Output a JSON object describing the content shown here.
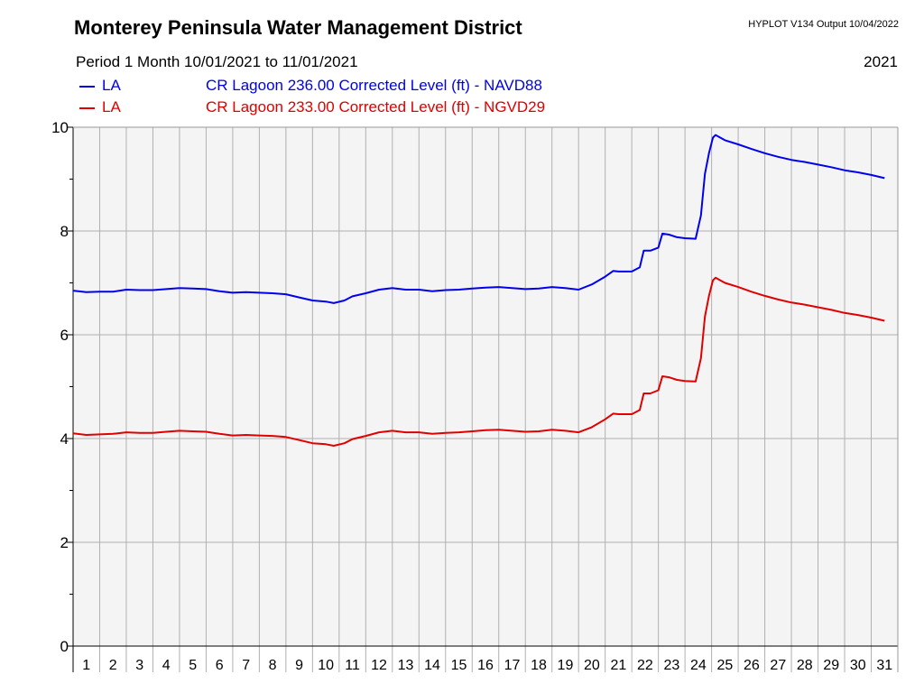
{
  "header": {
    "title": "Monterey Peninsula Water Management District",
    "meta": "HYPLOT V134  Output 10/04/2022",
    "period": "Period 1 Month  10/01/2021  to  11/01/2021",
    "year": "2021"
  },
  "chart_data": {
    "type": "line",
    "xlabel": "",
    "ylabel": "",
    "xlim": [
      1,
      32
    ],
    "ylim": [
      0,
      10
    ],
    "y_ticks": [
      0,
      2,
      4,
      6,
      8,
      10
    ],
    "y_minor_ticks": [
      1,
      3,
      5,
      7,
      9
    ],
    "x_tick_labels": [
      "1",
      "2",
      "3",
      "4",
      "5",
      "6",
      "7",
      "8",
      "9",
      "10",
      "11",
      "12",
      "13",
      "14",
      "15",
      "16",
      "17",
      "18",
      "19",
      "20",
      "21",
      "22",
      "23",
      "24",
      "25",
      "26",
      "27",
      "28",
      "29",
      "30",
      "31"
    ],
    "grid": true,
    "background": "#f4f4f4",
    "legend_position": "top-left",
    "series": [
      {
        "name": "CR Lagoon  236.00 Corrected Level (ft) - NAVD88",
        "site": "LA",
        "color": "#0000ee",
        "points": [
          [
            1,
            6.85
          ],
          [
            1.5,
            6.82
          ],
          [
            2,
            6.83
          ],
          [
            2.5,
            6.83
          ],
          [
            3,
            6.87
          ],
          [
            3.5,
            6.86
          ],
          [
            4,
            6.86
          ],
          [
            4.5,
            6.88
          ],
          [
            5,
            6.9
          ],
          [
            5.5,
            6.89
          ],
          [
            6,
            6.88
          ],
          [
            6.5,
            6.84
          ],
          [
            7,
            6.81
          ],
          [
            7.5,
            6.82
          ],
          [
            8,
            6.81
          ],
          [
            8.5,
            6.8
          ],
          [
            9,
            6.78
          ],
          [
            9.5,
            6.72
          ],
          [
            10,
            6.66
          ],
          [
            10.5,
            6.64
          ],
          [
            10.8,
            6.61
          ],
          [
            11.2,
            6.66
          ],
          [
            11.5,
            6.74
          ],
          [
            12,
            6.8
          ],
          [
            12.5,
            6.87
          ],
          [
            13,
            6.9
          ],
          [
            13.5,
            6.87
          ],
          [
            14,
            6.87
          ],
          [
            14.5,
            6.84
          ],
          [
            15,
            6.86
          ],
          [
            15.5,
            6.87
          ],
          [
            16,
            6.89
          ],
          [
            16.5,
            6.91
          ],
          [
            17,
            6.92
          ],
          [
            17.5,
            6.9
          ],
          [
            18,
            6.88
          ],
          [
            18.5,
            6.89
          ],
          [
            19,
            6.92
          ],
          [
            19.5,
            6.9
          ],
          [
            20,
            6.87
          ],
          [
            20.5,
            6.97
          ],
          [
            21,
            7.12
          ],
          [
            21.3,
            7.23
          ],
          [
            21.5,
            7.22
          ],
          [
            22,
            7.22
          ],
          [
            22.3,
            7.3
          ],
          [
            22.45,
            7.62
          ],
          [
            22.7,
            7.62
          ],
          [
            23,
            7.68
          ],
          [
            23.15,
            7.95
          ],
          [
            23.4,
            7.93
          ],
          [
            23.7,
            7.88
          ],
          [
            24,
            7.86
          ],
          [
            24.4,
            7.85
          ],
          [
            24.6,
            8.3
          ],
          [
            24.75,
            9.1
          ],
          [
            24.9,
            9.5
          ],
          [
            25.05,
            9.8
          ],
          [
            25.15,
            9.85
          ],
          [
            25.5,
            9.75
          ],
          [
            26,
            9.67
          ],
          [
            26.5,
            9.58
          ],
          [
            27,
            9.5
          ],
          [
            27.5,
            9.43
          ],
          [
            28,
            9.37
          ],
          [
            28.5,
            9.33
          ],
          [
            29,
            9.28
          ],
          [
            29.5,
            9.23
          ],
          [
            30,
            9.17
          ],
          [
            30.5,
            9.13
          ],
          [
            31,
            9.08
          ],
          [
            31.5,
            9.02
          ]
        ]
      },
      {
        "name": "CR Lagoon  233.00 Corrected Level (ft) - NGVD29",
        "site": "LA",
        "color": "#e00000",
        "points": [
          [
            1,
            4.1
          ],
          [
            1.5,
            4.07
          ],
          [
            2,
            4.08
          ],
          [
            2.5,
            4.09
          ],
          [
            3,
            4.12
          ],
          [
            3.5,
            4.11
          ],
          [
            4,
            4.11
          ],
          [
            4.5,
            4.13
          ],
          [
            5,
            4.15
          ],
          [
            5.5,
            4.14
          ],
          [
            6,
            4.13
          ],
          [
            6.5,
            4.09
          ],
          [
            7,
            4.06
          ],
          [
            7.5,
            4.07
          ],
          [
            8,
            4.06
          ],
          [
            8.5,
            4.05
          ],
          [
            9,
            4.03
          ],
          [
            9.5,
            3.97
          ],
          [
            10,
            3.91
          ],
          [
            10.5,
            3.89
          ],
          [
            10.8,
            3.86
          ],
          [
            11.2,
            3.91
          ],
          [
            11.5,
            3.99
          ],
          [
            12,
            4.05
          ],
          [
            12.5,
            4.12
          ],
          [
            13,
            4.15
          ],
          [
            13.5,
            4.12
          ],
          [
            14,
            4.12
          ],
          [
            14.5,
            4.09
          ],
          [
            15,
            4.11
          ],
          [
            15.5,
            4.12
          ],
          [
            16,
            4.14
          ],
          [
            16.5,
            4.16
          ],
          [
            17,
            4.17
          ],
          [
            17.5,
            4.15
          ],
          [
            18,
            4.13
          ],
          [
            18.5,
            4.14
          ],
          [
            19,
            4.17
          ],
          [
            19.5,
            4.15
          ],
          [
            20,
            4.12
          ],
          [
            20.5,
            4.22
          ],
          [
            21,
            4.37
          ],
          [
            21.3,
            4.48
          ],
          [
            21.5,
            4.47
          ],
          [
            22,
            4.47
          ],
          [
            22.3,
            4.55
          ],
          [
            22.45,
            4.87
          ],
          [
            22.7,
            4.87
          ],
          [
            23,
            4.93
          ],
          [
            23.15,
            5.2
          ],
          [
            23.4,
            5.18
          ],
          [
            23.7,
            5.13
          ],
          [
            24,
            5.11
          ],
          [
            24.4,
            5.1
          ],
          [
            24.6,
            5.55
          ],
          [
            24.75,
            6.35
          ],
          [
            24.9,
            6.75
          ],
          [
            25.05,
            7.05
          ],
          [
            25.15,
            7.1
          ],
          [
            25.5,
            7.0
          ],
          [
            26,
            6.92
          ],
          [
            26.5,
            6.83
          ],
          [
            27,
            6.75
          ],
          [
            27.5,
            6.68
          ],
          [
            28,
            6.62
          ],
          [
            28.5,
            6.58
          ],
          [
            29,
            6.53
          ],
          [
            29.5,
            6.48
          ],
          [
            30,
            6.42
          ],
          [
            30.5,
            6.38
          ],
          [
            31,
            6.33
          ],
          [
            31.5,
            6.27
          ]
        ]
      }
    ]
  }
}
